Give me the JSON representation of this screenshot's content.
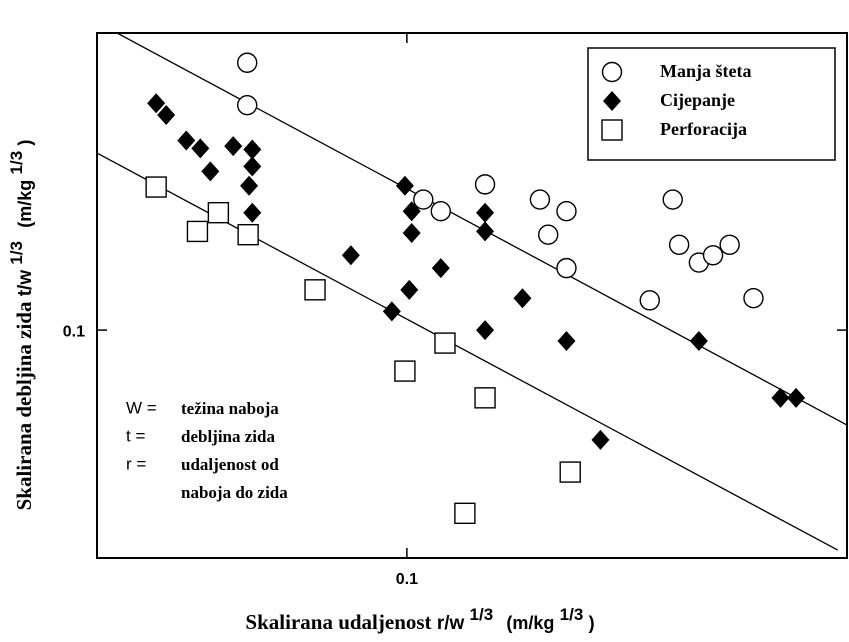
{
  "chart_data": {
    "type": "scatter",
    "xlabel": {
      "main": "Skalirana udaljenost",
      "var": "r/w",
      "var_exp": "1/3",
      "unit": "(m/kg",
      "unit_exp": "1/3",
      "close": ")"
    },
    "ylabel": {
      "main": "Skalirana debljina zida",
      "var": "t/w",
      "var_exp": "1/3",
      "unit": "(m/kg",
      "unit_exp": "1/3",
      "close": ")"
    },
    "xscale": "log",
    "yscale": "log",
    "xlim": [
      0.0279,
      0.613
    ],
    "ylim": [
      0.0392,
      0.339
    ],
    "xticks": [
      0.1
    ],
    "yticks": [
      0.1
    ],
    "legend": "upper right",
    "series": [
      {
        "name": "Manja šteta",
        "marker": "circle",
        "color": "#000000",
        "x": [
          0.0518,
          0.0518,
          0.107,
          0.115,
          0.138,
          0.173,
          0.179,
          0.193,
          0.193,
          0.272,
          0.299,
          0.307,
          0.333,
          0.353,
          0.378,
          0.417
        ],
        "values": [
          0.3,
          0.252,
          0.171,
          0.163,
          0.182,
          0.171,
          0.148,
          0.163,
          0.129,
          0.113,
          0.171,
          0.142,
          0.132,
          0.136,
          0.142,
          0.114
        ]
      },
      {
        "name": "Cijepanje",
        "marker": "diamond",
        "color": "#000000",
        "x": [
          0.0356,
          0.0371,
          0.0403,
          0.0427,
          0.0445,
          0.0489,
          0.0529,
          0.0529,
          0.0522,
          0.0529,
          0.0992,
          0.102,
          0.102,
          0.0794,
          0.115,
          0.101,
          0.094,
          0.138,
          0.138,
          0.161,
          0.138,
          0.193,
          0.333,
          0.466,
          0.497,
          0.222
        ],
        "values": [
          0.254,
          0.242,
          0.218,
          0.211,
          0.192,
          0.213,
          0.21,
          0.196,
          0.181,
          0.162,
          0.181,
          0.163,
          0.149,
          0.136,
          0.129,
          0.118,
          0.108,
          0.162,
          0.15,
          0.114,
          0.1,
          0.0956,
          0.0956,
          0.0757,
          0.0757,
          0.0637
        ]
      },
      {
        "name": "Perforacija",
        "marker": "square",
        "color": "#000000",
        "x": [
          0.0356,
          0.046,
          0.0422,
          0.052,
          0.0685,
          0.0992,
          0.117,
          0.138,
          0.196,
          0.127
        ],
        "values": [
          0.18,
          0.162,
          0.15,
          0.148,
          0.118,
          0.0845,
          0.0948,
          0.0757,
          0.0558,
          0.0471
        ]
      }
    ],
    "reference_lines": [
      {
        "x": [
          0.0303,
          0.613
        ],
        "values": [
          0.339,
          0.0677
        ]
      },
      {
        "x": [
          0.0279,
          0.59
        ],
        "values": [
          0.207,
          0.0405
        ]
      }
    ],
    "annotations": [
      {
        "term": "W =",
        "definition": [
          "težina naboja"
        ]
      },
      {
        "term": "t =",
        "definition": [
          "debljina zida"
        ]
      },
      {
        "term": "r =",
        "definition": [
          "udaljenost od",
          "naboja do zida"
        ]
      }
    ]
  }
}
